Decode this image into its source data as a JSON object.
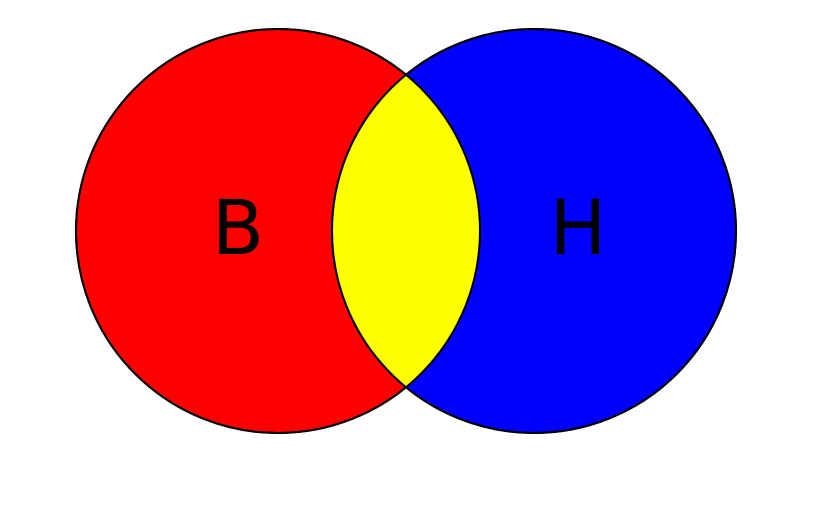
{
  "diagram": {
    "type": "venn",
    "sets": [
      {
        "id": "left",
        "label": "B",
        "color": "#ff0000"
      },
      {
        "id": "right",
        "label": "H",
        "color": "#0000ff"
      }
    ],
    "intersection": {
      "color": "#ffff00"
    },
    "outline_color": "#000000",
    "background_color": "#ffffff"
  }
}
